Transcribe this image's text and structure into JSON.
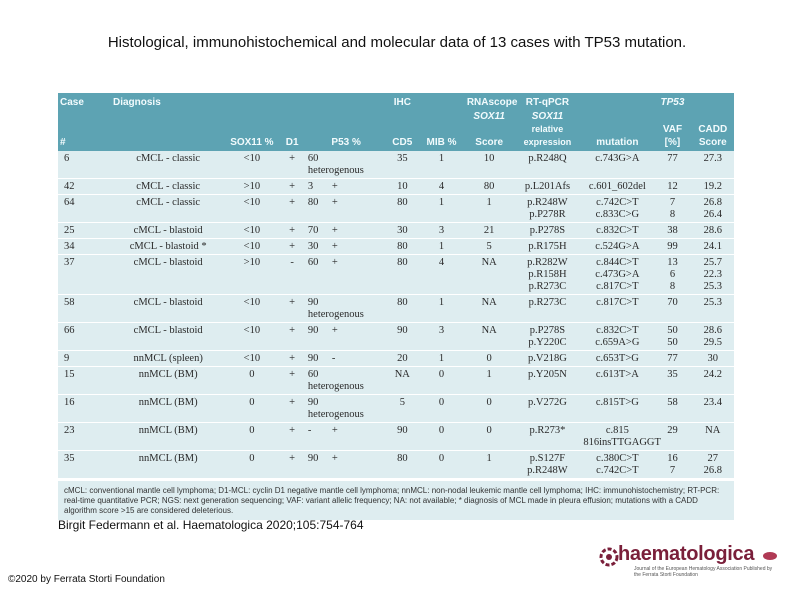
{
  "title": "Histological, immunohistochemical and molecular data of 13 cases with TP53 mutation.",
  "table": {
    "header_row1": {
      "case": "Case",
      "diagnosis": "Diagnosis",
      "ihc": "IHC",
      "rnascope": "RNAscope",
      "rtqpcr": "RT-qPCR",
      "tp53": "TP53"
    },
    "header_row2": {
      "sox11_a": "SOX11",
      "sox11_b": "SOX11"
    },
    "header_row3": {
      "num": "#",
      "sox11_pct": "SOX11 %",
      "d1": "D1",
      "p53_pct": "P53 %",
      "cd5": "CD5",
      "mib": "MIB %",
      "score": "Score",
      "relexp": "relative expression",
      "mutation": "mutation",
      "vaf": "VAF [%]",
      "cadd": "CADD Score"
    },
    "rows": [
      {
        "case": "6",
        "diagnosis": "cMCL - classic",
        "sox11": "<10",
        "d1": "+",
        "p53": "60",
        "p53note": "heterogenous",
        "cd5": "35",
        "mib": "1",
        "score": "10",
        "protein": [
          "p.R248Q"
        ],
        "mutation": [
          "c.743G>A"
        ],
        "vaf": [
          "77"
        ],
        "cadd": [
          "27.3"
        ]
      },
      {
        "case": "42",
        "diagnosis": "cMCL - classic",
        "sox11": ">10",
        "d1": "+",
        "p53": "3",
        "p53note": "+",
        "cd5": "10",
        "mib": "4",
        "score": "80",
        "protein": [
          "p.L201Afs"
        ],
        "mutation": [
          "c.601_602del"
        ],
        "vaf": [
          "12"
        ],
        "cadd": [
          "19.2"
        ]
      },
      {
        "case": "64",
        "diagnosis": "cMCL - classic",
        "sox11": "<10",
        "d1": "+",
        "p53": "80",
        "p53note": "+",
        "cd5": "80",
        "mib": "1",
        "score": "1",
        "protein": [
          "p.R248W",
          "p.P278R"
        ],
        "mutation": [
          "c.742C>T",
          "c.833C>G"
        ],
        "vaf": [
          "7",
          "8"
        ],
        "cadd": [
          "26.8",
          "26.4"
        ]
      },
      {
        "case": "25",
        "diagnosis": "cMCL - blastoid",
        "sox11": "<10",
        "d1": "+",
        "p53": "70",
        "p53note": "+",
        "cd5": "30",
        "mib": "3",
        "score": "21",
        "protein": [
          "p.P278S"
        ],
        "mutation": [
          "c.832C>T"
        ],
        "vaf": [
          "38"
        ],
        "cadd": [
          "28.6"
        ]
      },
      {
        "case": "34",
        "diagnosis": "cMCL - blastoid *",
        "sox11": "<10",
        "d1": "+",
        "p53": "30",
        "p53note": "+",
        "cd5": "80",
        "mib": "1",
        "score": "5",
        "protein": [
          "p.R175H"
        ],
        "mutation": [
          "c.524G>A"
        ],
        "vaf": [
          "99"
        ],
        "cadd": [
          "24.1"
        ]
      },
      {
        "case": "37",
        "diagnosis": "cMCL - blastoid",
        "sox11": ">10",
        "d1": "-",
        "p53": "60",
        "p53note": "+",
        "cd5": "80",
        "mib": "4",
        "score": "NA",
        "protein": [
          "p.R282W",
          "p.R158H",
          "p.R273C"
        ],
        "mutation": [
          "c.844C>T",
          "c.473G>A",
          "c.817C>T"
        ],
        "vaf": [
          "13",
          "6",
          "8"
        ],
        "cadd": [
          "25.7",
          "22.3",
          "25.3"
        ]
      },
      {
        "case": "58",
        "diagnosis": "cMCL - blastoid",
        "sox11": "<10",
        "d1": "+",
        "p53": "90",
        "p53note": "heterogenous",
        "cd5": "80",
        "mib": "1",
        "score": "NA",
        "protein": [
          "p.R273C"
        ],
        "mutation": [
          "c.817C>T"
        ],
        "vaf": [
          "70"
        ],
        "cadd": [
          "25.3"
        ]
      },
      {
        "case": "66",
        "diagnosis": "cMCL - blastoid",
        "sox11": "<10",
        "d1": "+",
        "p53": "90",
        "p53note": "+",
        "cd5": "90",
        "mib": "3",
        "score": "NA",
        "protein": [
          "p.P278S",
          "p.Y220C"
        ],
        "mutation": [
          "c.832C>T",
          "c.659A>G"
        ],
        "vaf": [
          "50",
          "50"
        ],
        "cadd": [
          "28.6",
          "29.5"
        ]
      },
      {
        "case": "9",
        "diagnosis": "nnMCL (spleen)",
        "sox11": "<10",
        "d1": "+",
        "p53": "90",
        "p53note": "-",
        "cd5": "20",
        "mib": "1",
        "score": "0",
        "protein": [
          "p.V218G"
        ],
        "mutation": [
          "c.653T>G"
        ],
        "vaf": [
          "77"
        ],
        "cadd": [
          "30"
        ]
      },
      {
        "case": "15",
        "diagnosis": "nnMCL (BM)",
        "sox11": "0",
        "d1": "+",
        "p53": "60",
        "p53note": "heterogenous",
        "cd5": "NA",
        "mib": "0",
        "score": "1",
        "protein": [
          "p.Y205N"
        ],
        "mutation": [
          "c.613T>A"
        ],
        "vaf": [
          "35"
        ],
        "cadd": [
          "24.2"
        ]
      },
      {
        "case": "16",
        "diagnosis": "nnMCL (BM)",
        "sox11": "0",
        "d1": "+",
        "p53": "90",
        "p53note": "heterogenous",
        "cd5": "5",
        "mib": "0",
        "score": "0",
        "protein": [
          "p.V272G"
        ],
        "mutation": [
          "c.815T>G"
        ],
        "vaf": [
          "58"
        ],
        "cadd": [
          "23.4"
        ]
      },
      {
        "case": "23",
        "diagnosis": "nnMCL (BM)",
        "sox11": "0",
        "d1": "+",
        "p53": "-",
        "p53note": "+",
        "cd5": "90",
        "mib": "0",
        "score": "0",
        "protein": [
          "p.R273*"
        ],
        "mutation": [
          "c.815 816insTTGAGGT"
        ],
        "vaf": [
          "29"
        ],
        "cadd": [
          "NA"
        ]
      },
      {
        "case": "35",
        "diagnosis": "nnMCL (BM)",
        "sox11": "0",
        "d1": "+",
        "p53": "90",
        "p53note": "+",
        "cd5": "80",
        "mib": "0",
        "score": "1",
        "protein": [
          "p.S127F",
          "p.R248W"
        ],
        "mutation": [
          "c.380C>T",
          "c.742C>T"
        ],
        "vaf": [
          "16",
          "7"
        ],
        "cadd": [
          "27",
          "26.8"
        ]
      }
    ],
    "footnote": "cMCL: conventional mantle cell lymphoma; D1-MCL: cyclin D1 negative mantle cell lymphoma; nnMCL: non-nodal leukemic mantle cell lymphoma; IHC: immunohistochemistry; RT-PCR: real-time quantitative PCR; NGS: next generation sequencing; VAF: variant allelic frequency; NA: not available; * diagnosis of MCL made in pleura effusion; mutations with a CADD algorithm score >15 are considered deleterious."
  },
  "citation": "Birgit Federmann et al. Haematologica 2020;105:754-764",
  "copyright": "©2020 by Ferrata Storti Foundation",
  "logo": {
    "word": "haematologica",
    "subtitle": "Journal of the European Hematology Association Published by the Ferrata Storti Foundation"
  },
  "colors": {
    "header": "#5da3b3",
    "row": "#deedf0",
    "logo": "#7a1f3a"
  }
}
